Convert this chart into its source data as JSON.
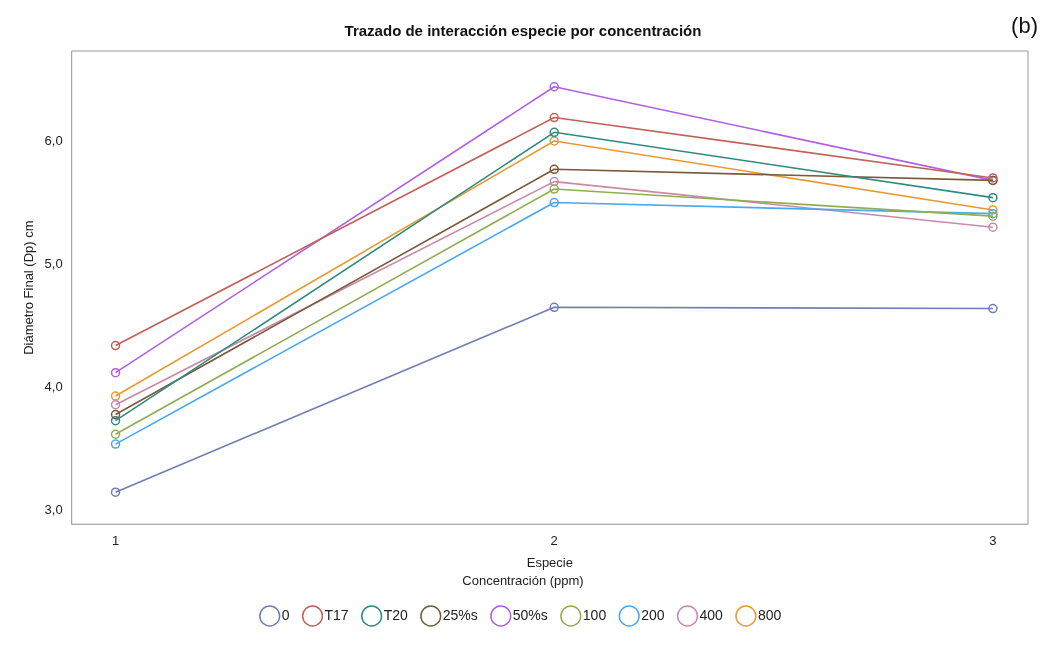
{
  "chart_data": {
    "type": "line",
    "title": "Trazado de interacción especie por concentración",
    "xlabel": "Especie",
    "ylabel": "Diámetro Final (Dp) cm",
    "legend_title": "Concentración (ppm)",
    "annotations": [
      "(b)"
    ],
    "x": [
      1,
      2,
      3
    ],
    "xlim": [
      0.9,
      3.08
    ],
    "xticks": [
      1,
      2,
      3
    ],
    "ylim": [
      2.89,
      6.73
    ],
    "yticks": [
      {
        "value": 3,
        "label": "3,0"
      },
      {
        "value": 4,
        "label": "4,0"
      },
      {
        "value": 5,
        "label": "5,0"
      },
      {
        "value": 6,
        "label": "6,0"
      }
    ],
    "grid": false,
    "legend": "bottom",
    "marker": "circle",
    "line_style": "solid",
    "series": [
      {
        "name": "0",
        "color": "#6f7fb5",
        "values": [
          3.15,
          4.65,
          4.64
        ]
      },
      {
        "name": "T17",
        "color": "#c0625a",
        "values": [
          4.34,
          6.19,
          5.7
        ]
      },
      {
        "name": "T20",
        "color": "#2e8b7d",
        "values": [
          3.73,
          6.07,
          5.54
        ]
      },
      {
        "name": "25%s",
        "color": "#7a5a3a",
        "values": [
          3.78,
          5.77,
          5.68
        ]
      },
      {
        "name": "50%s",
        "color": "#b060e0",
        "values": [
          4.12,
          6.44,
          5.68
        ]
      },
      {
        "name": "100",
        "color": "#8fae50",
        "values": [
          3.62,
          5.61,
          5.39
        ]
      },
      {
        "name": "200",
        "color": "#4aa8f0",
        "values": [
          3.54,
          5.5,
          5.41
        ]
      },
      {
        "name": "400",
        "color": "#c88aa8",
        "values": [
          3.86,
          5.67,
          5.3
        ]
      },
      {
        "name": "800",
        "color": "#e89a30",
        "values": [
          3.93,
          6.0,
          5.44
        ]
      }
    ]
  }
}
